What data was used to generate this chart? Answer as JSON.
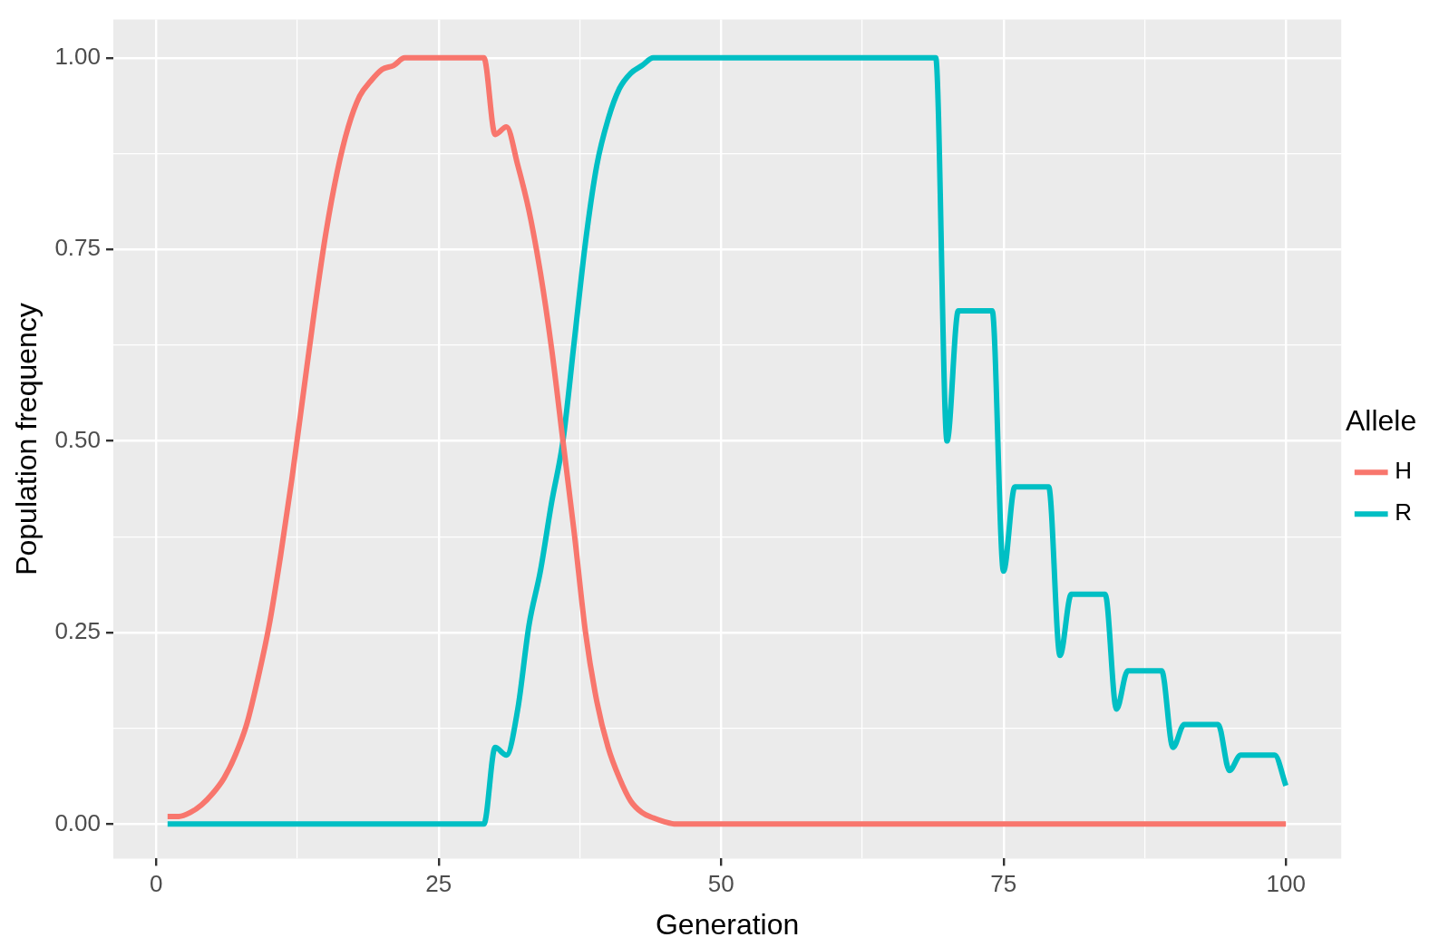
{
  "chart_data": {
    "type": "line",
    "xlabel": "Generation",
    "ylabel": "Population frequency",
    "legend_title": "Allele",
    "legend": "right",
    "grid": true,
    "marker": "none",
    "line_style": "solid",
    "x": [
      1,
      2,
      3,
      4,
      5,
      6,
      7,
      8,
      9,
      10,
      11,
      12,
      13,
      14,
      15,
      16,
      17,
      18,
      19,
      20,
      21,
      22,
      23,
      24,
      25,
      26,
      27,
      28,
      29,
      30,
      31,
      32,
      33,
      34,
      35,
      36,
      37,
      38,
      39,
      40,
      41,
      42,
      43,
      44,
      45,
      46,
      47,
      48,
      49,
      50,
      51,
      52,
      53,
      54,
      55,
      56,
      57,
      58,
      59,
      60,
      61,
      62,
      63,
      64,
      65,
      66,
      67,
      68,
      69,
      70,
      71,
      72,
      73,
      74,
      75,
      76,
      77,
      78,
      79,
      80,
      81,
      82,
      83,
      84,
      85,
      86,
      87,
      88,
      89,
      90,
      91,
      92,
      93,
      94,
      95,
      96,
      97,
      98,
      99,
      100
    ],
    "xlim": [
      -3.8,
      104.9
    ],
    "xticks": [
      0,
      {
        "value": 12.5,
        "label": null
      },
      25,
      {
        "value": 37.5,
        "label": null
      },
      50,
      {
        "value": 62.5,
        "label": null
      },
      75,
      {
        "value": 87.5,
        "label": null
      },
      100
    ],
    "ylim": [
      -0.045,
      1.05
    ],
    "yticks": [
      {
        "value": 0,
        "label": "0.00"
      },
      {
        "value": 0.125,
        "label": null
      },
      {
        "value": 0.25,
        "label": "0.25"
      },
      {
        "value": 0.375,
        "label": null
      },
      {
        "value": 0.5,
        "label": "0.50"
      },
      {
        "value": 0.625,
        "label": null
      },
      {
        "value": 0.75,
        "label": "0.75"
      },
      {
        "value": 0.875,
        "label": null
      },
      {
        "value": 1,
        "label": "1.00"
      }
    ],
    "series": [
      {
        "name": "H",
        "color": "#f8766d",
        "values": [
          0.01,
          0.01,
          0.015,
          0.025,
          0.04,
          0.06,
          0.09,
          0.13,
          0.19,
          0.26,
          0.35,
          0.45,
          0.56,
          0.67,
          0.77,
          0.85,
          0.91,
          0.95,
          0.97,
          0.985,
          0.99,
          1,
          1,
          1,
          1,
          1,
          1,
          1,
          1,
          0.9,
          0.91,
          0.86,
          0.8,
          0.72,
          0.62,
          0.5,
          0.38,
          0.25,
          0.16,
          0.1,
          0.06,
          0.03,
          0.015,
          0.008,
          0.003,
          0,
          0,
          0,
          0,
          0,
          0,
          0,
          0,
          0,
          0,
          0,
          0,
          0,
          0,
          0,
          0,
          0,
          0,
          0,
          0,
          0,
          0,
          0,
          0,
          0,
          0,
          0,
          0,
          0,
          0,
          0,
          0,
          0,
          0,
          0,
          0,
          0,
          0,
          0,
          0,
          0,
          0,
          0,
          0,
          0,
          0,
          0,
          0,
          0,
          0,
          0,
          0,
          0,
          0,
          0
        ]
      },
      {
        "name": "R",
        "color": "#00bfc4",
        "values": [
          0,
          0,
          0,
          0,
          0,
          0,
          0,
          0,
          0,
          0,
          0,
          0,
          0,
          0,
          0,
          0,
          0,
          0,
          0,
          0,
          0,
          0,
          0,
          0,
          0,
          0,
          0,
          0,
          0,
          0.1,
          0.09,
          0.15,
          0.26,
          0.33,
          0.42,
          0.5,
          0.63,
          0.76,
          0.86,
          0.92,
          0.96,
          0.98,
          0.99,
          1,
          1,
          1,
          1,
          1,
          1,
          1,
          1,
          1,
          1,
          1,
          1,
          1,
          1,
          1,
          1,
          1,
          1,
          1,
          1,
          1,
          1,
          1,
          1,
          1,
          1,
          0.5,
          0.67,
          0.67,
          0.67,
          0.67,
          0.33,
          0.44,
          0.44,
          0.44,
          0.44,
          0.22,
          0.3,
          0.3,
          0.3,
          0.3,
          0.15,
          0.2,
          0.2,
          0.2,
          0.2,
          0.1,
          0.13,
          0.13,
          0.13,
          0.13,
          0.07,
          0.09,
          0.09,
          0.09,
          0.09,
          0.05
        ]
      }
    ]
  }
}
